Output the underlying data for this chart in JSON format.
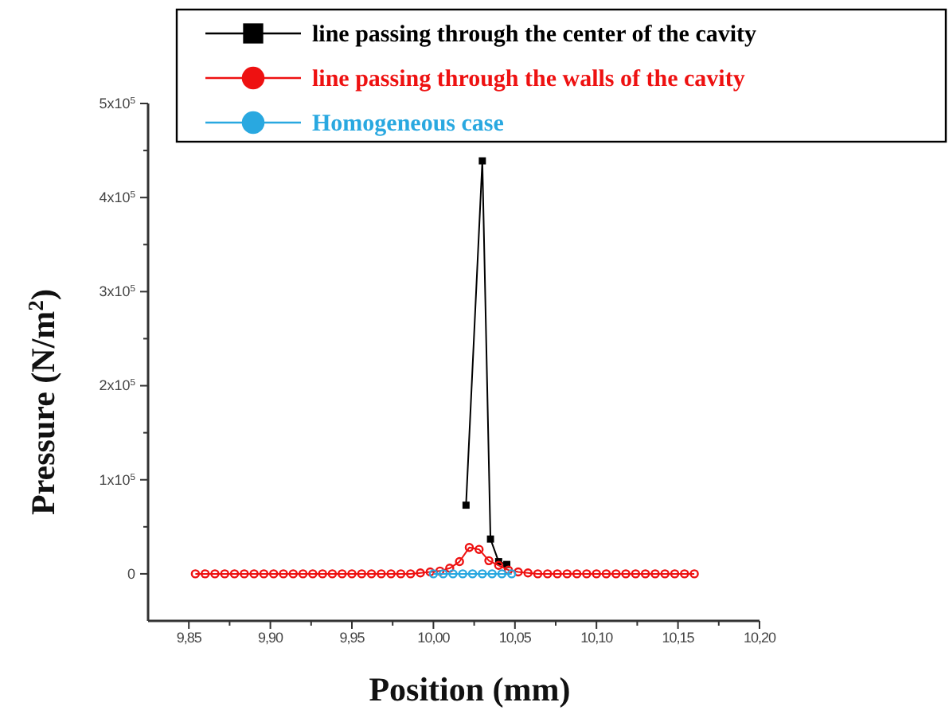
{
  "chart_data": {
    "type": "line",
    "xlabel": "Position  (mm)",
    "ylabel": "Pressure (N/m$^{2}$)",
    "xlim": [
      9.825,
      10.2
    ],
    "xticks": [
      {
        "value": 9.85,
        "label": "9,85"
      },
      {
        "value": 9.875,
        "label": null
      },
      {
        "value": 9.9,
        "label": "9,90"
      },
      {
        "value": 9.925,
        "label": null
      },
      {
        "value": 9.95,
        "label": "9,95"
      },
      {
        "value": 9.975,
        "label": null
      },
      {
        "value": 10,
        "label": "10,00"
      },
      {
        "value": 10.025,
        "label": null
      },
      {
        "value": 10.05,
        "label": "10,05"
      },
      {
        "value": 10.075,
        "label": null
      },
      {
        "value": 10.1,
        "label": "10,10"
      },
      {
        "value": 10.125,
        "label": null
      },
      {
        "value": 10.15,
        "label": "10,15"
      },
      {
        "value": 10.175,
        "label": null
      },
      {
        "value": 10.2,
        "label": "10,20"
      }
    ],
    "ylim": [
      -50000,
      500000
    ],
    "yticks": [
      0,
      {
        "value": 50000,
        "label": null
      },
      {
        "value": 100000,
        "label": "1x10$^{5}$"
      },
      {
        "value": 150000,
        "label": null
      },
      {
        "value": 200000,
        "label": "2x10$^{5}$"
      },
      {
        "value": 250000,
        "label": null
      },
      {
        "value": 300000,
        "label": "3x10$^{5}$"
      },
      {
        "value": 350000,
        "label": null
      },
      {
        "value": 400000,
        "label": "4x10$^{5}$"
      },
      {
        "value": 450000,
        "label": null
      },
      {
        "value": 500000,
        "label": "5x10$^{5}$"
      }
    ],
    "grid": false,
    "legend": "top right",
    "series": [
      {
        "name": "line passing through the center of the cavity",
        "color": "#000000",
        "marker": "square",
        "x": [
          10.02,
          10.03,
          10.035,
          10.04,
          10.045
        ],
        "values": [
          73000,
          439000,
          37000,
          13000,
          10000
        ]
      },
      {
        "name": "line passing through the walls of the cavity",
        "color": "#ee1111",
        "marker": "circle",
        "x": [
          9.854,
          9.86,
          9.866,
          9.872,
          9.878,
          9.884,
          9.89,
          9.896,
          9.902,
          9.908,
          9.914,
          9.92,
          9.926,
          9.932,
          9.938,
          9.944,
          9.95,
          9.956,
          9.962,
          9.968,
          9.974,
          9.98,
          9.986,
          9.992,
          9.998,
          10.004,
          10.01,
          10.016,
          10.022,
          10.028,
          10.034,
          10.04,
          10.046,
          10.052,
          10.058,
          10.064,
          10.07,
          10.076,
          10.082,
          10.088,
          10.094,
          10.1,
          10.106,
          10.112,
          10.118,
          10.124,
          10.13,
          10.136,
          10.142,
          10.148,
          10.154,
          10.16
        ],
        "values": [
          0,
          0,
          0,
          0,
          0,
          0,
          0,
          0,
          0,
          0,
          0,
          0,
          0,
          0,
          0,
          0,
          0,
          0,
          0,
          0,
          0,
          0,
          0,
          1000,
          2000,
          3000,
          6000,
          13000,
          28000,
          26000,
          14000,
          9000,
          4000,
          2000,
          1000,
          0,
          0,
          0,
          0,
          0,
          0,
          0,
          0,
          0,
          0,
          0,
          0,
          0,
          0,
          0,
          0,
          0
        ]
      },
      {
        "name": "Homogeneous case",
        "color": "#29a8e0",
        "marker": "circle",
        "x": [
          10,
          10.006,
          10.012,
          10.018,
          10.024,
          10.03,
          10.036,
          10.042,
          10.048
        ],
        "values": [
          0,
          0,
          0,
          0,
          0,
          0,
          0,
          0,
          0
        ]
      }
    ]
  }
}
